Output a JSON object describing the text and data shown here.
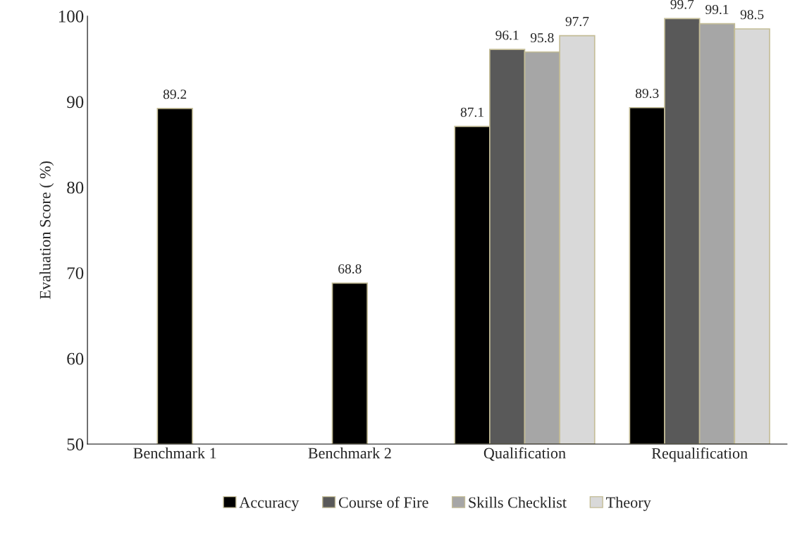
{
  "chart_data": {
    "type": "bar",
    "ylabel": "Evaluation Score ( %)",
    "categories": [
      "Benchmark 1",
      "Benchmark 2",
      "Qualification",
      "Requalification"
    ],
    "series": [
      {
        "name": "Accuracy",
        "color": "#000000",
        "values": [
          89.2,
          68.8,
          87.1,
          89.3
        ]
      },
      {
        "name": "Course of Fire",
        "color": "#595959",
        "values": [
          null,
          null,
          96.1,
          99.7
        ]
      },
      {
        "name": "Skills Checklist",
        "color": "#a6a6a6",
        "values": [
          null,
          null,
          95.8,
          99.1
        ]
      },
      {
        "name": "Theory",
        "color": "#d9d9d9",
        "values": [
          null,
          null,
          97.7,
          98.5
        ]
      }
    ],
    "ylim": [
      50,
      100
    ],
    "yticks": [
      50,
      60,
      70,
      80,
      90,
      100
    ],
    "data_labels": true,
    "grid": false,
    "legend": "bottom"
  }
}
